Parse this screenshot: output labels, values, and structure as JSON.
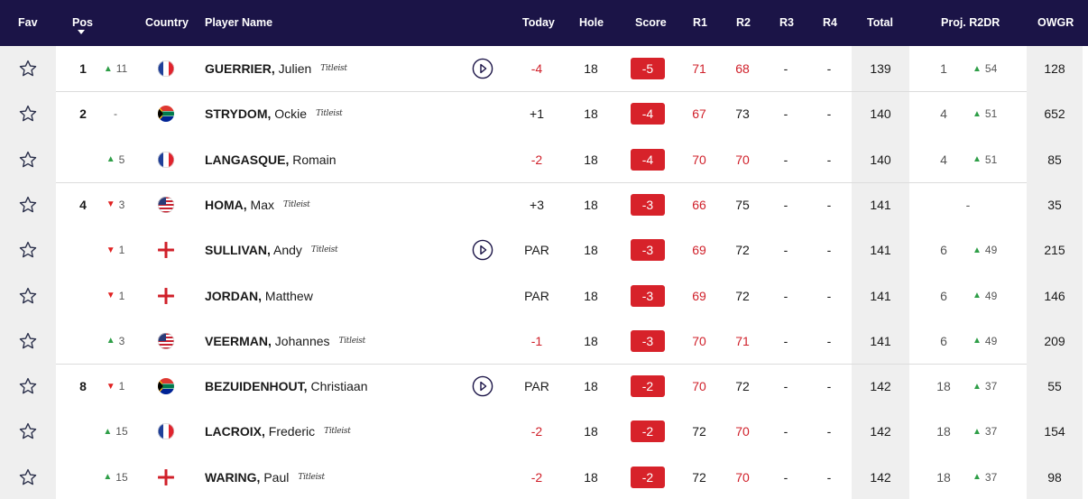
{
  "colors": {
    "header_bg": "#1b1447",
    "score_red": "#d7222a",
    "up_green": "#2e9e47",
    "down_red": "#e02020",
    "shade": "#efefef"
  },
  "header": {
    "fav": "Fav",
    "pos": "Pos",
    "country": "Country",
    "player_name": "Player Name",
    "today": "Today",
    "hole": "Hole",
    "score": "Score",
    "r1": "R1",
    "r2": "R2",
    "r3": "R3",
    "r4": "R4",
    "total": "Total",
    "proj": "Proj. R2DR",
    "owgr": "OWGR"
  },
  "icons": {
    "favourite": "star-outline-icon",
    "play": "play-circle-icon",
    "sort": "sort-down-icon",
    "brand": "titleist-logo"
  },
  "rows": [
    {
      "pos": "1",
      "move": "11",
      "dir": "up",
      "country": "fra",
      "last": "GUERRIER,",
      "first": " Julien",
      "brand": "Titleist",
      "play": true,
      "today": "-4",
      "today_red": true,
      "hole": "18",
      "score": "-5",
      "r1": "71",
      "r1_red": true,
      "r2": "68",
      "r2_red": true,
      "r3": "-",
      "r4": "-",
      "total": "139",
      "proj": "1",
      "proj_move": "54",
      "proj_dir": "up",
      "owgr": "128"
    },
    {
      "pos": "2",
      "move": "-",
      "dir": "none",
      "country": "rsa",
      "last": "STRYDOM,",
      "first": " Ockie",
      "brand": "Titleist",
      "play": false,
      "today": "+1",
      "today_red": false,
      "hole": "18",
      "score": "-4",
      "r1": "67",
      "r1_red": true,
      "r2": "73",
      "r2_red": false,
      "r3": "-",
      "r4": "-",
      "total": "140",
      "proj": "4",
      "proj_move": "51",
      "proj_dir": "up",
      "owgr": "652"
    },
    {
      "pos": "",
      "move": "5",
      "dir": "up",
      "country": "fra",
      "last": "LANGASQUE,",
      "first": " Romain",
      "brand": "",
      "play": false,
      "today": "-2",
      "today_red": true,
      "hole": "18",
      "score": "-4",
      "r1": "70",
      "r1_red": true,
      "r2": "70",
      "r2_red": true,
      "r3": "-",
      "r4": "-",
      "total": "140",
      "proj": "4",
      "proj_move": "51",
      "proj_dir": "up",
      "owgr": "85"
    },
    {
      "pos": "4",
      "move": "3",
      "dir": "down",
      "country": "usa",
      "last": "HOMA,",
      "first": " Max",
      "brand": "Titleist",
      "play": false,
      "today": "+3",
      "today_red": false,
      "hole": "18",
      "score": "-3",
      "r1": "66",
      "r1_red": true,
      "r2": "75",
      "r2_red": false,
      "r3": "-",
      "r4": "-",
      "total": "141",
      "proj": "-",
      "proj_move": "",
      "proj_dir": "none",
      "owgr": "35"
    },
    {
      "pos": "",
      "move": "1",
      "dir": "down",
      "country": "eng",
      "last": "SULLIVAN,",
      "first": " Andy",
      "brand": "Titleist",
      "play": true,
      "today": "PAR",
      "today_red": false,
      "hole": "18",
      "score": "-3",
      "r1": "69",
      "r1_red": true,
      "r2": "72",
      "r2_red": false,
      "r3": "-",
      "r4": "-",
      "total": "141",
      "proj": "6",
      "proj_move": "49",
      "proj_dir": "up",
      "owgr": "215"
    },
    {
      "pos": "",
      "move": "1",
      "dir": "down",
      "country": "eng",
      "last": "JORDAN,",
      "first": " Matthew",
      "brand": "",
      "play": false,
      "today": "PAR",
      "today_red": false,
      "hole": "18",
      "score": "-3",
      "r1": "69",
      "r1_red": true,
      "r2": "72",
      "r2_red": false,
      "r3": "-",
      "r4": "-",
      "total": "141",
      "proj": "6",
      "proj_move": "49",
      "proj_dir": "up",
      "owgr": "146"
    },
    {
      "pos": "",
      "move": "3",
      "dir": "up",
      "country": "usa",
      "last": "VEERMAN,",
      "first": " Johannes",
      "brand": "Titleist",
      "play": false,
      "today": "-1",
      "today_red": true,
      "hole": "18",
      "score": "-3",
      "r1": "70",
      "r1_red": true,
      "r2": "71",
      "r2_red": true,
      "r3": "-",
      "r4": "-",
      "total": "141",
      "proj": "6",
      "proj_move": "49",
      "proj_dir": "up",
      "owgr": "209"
    },
    {
      "pos": "8",
      "move": "1",
      "dir": "down",
      "country": "rsa",
      "last": "BEZUIDENHOUT,",
      "first": " Christiaan",
      "brand": "",
      "play": true,
      "today": "PAR",
      "today_red": false,
      "hole": "18",
      "score": "-2",
      "r1": "70",
      "r1_red": true,
      "r2": "72",
      "r2_red": false,
      "r3": "-",
      "r4": "-",
      "total": "142",
      "proj": "18",
      "proj_move": "37",
      "proj_dir": "up",
      "owgr": "55"
    },
    {
      "pos": "",
      "move": "15",
      "dir": "up",
      "country": "fra",
      "last": "LACROIX,",
      "first": " Frederic",
      "brand": "Titleist",
      "play": false,
      "today": "-2",
      "today_red": true,
      "hole": "18",
      "score": "-2",
      "r1": "72",
      "r1_red": false,
      "r2": "70",
      "r2_red": true,
      "r3": "-",
      "r4": "-",
      "total": "142",
      "proj": "18",
      "proj_move": "37",
      "proj_dir": "up",
      "owgr": "154"
    },
    {
      "pos": "",
      "move": "15",
      "dir": "up",
      "country": "eng",
      "last": "WARING,",
      "first": " Paul",
      "brand": "Titleist",
      "play": false,
      "today": "-2",
      "today_red": true,
      "hole": "18",
      "score": "-2",
      "r1": "72",
      "r1_red": false,
      "r2": "70",
      "r2_red": true,
      "r3": "-",
      "r4": "-",
      "total": "142",
      "proj": "18",
      "proj_move": "37",
      "proj_dir": "up",
      "owgr": "98"
    }
  ]
}
